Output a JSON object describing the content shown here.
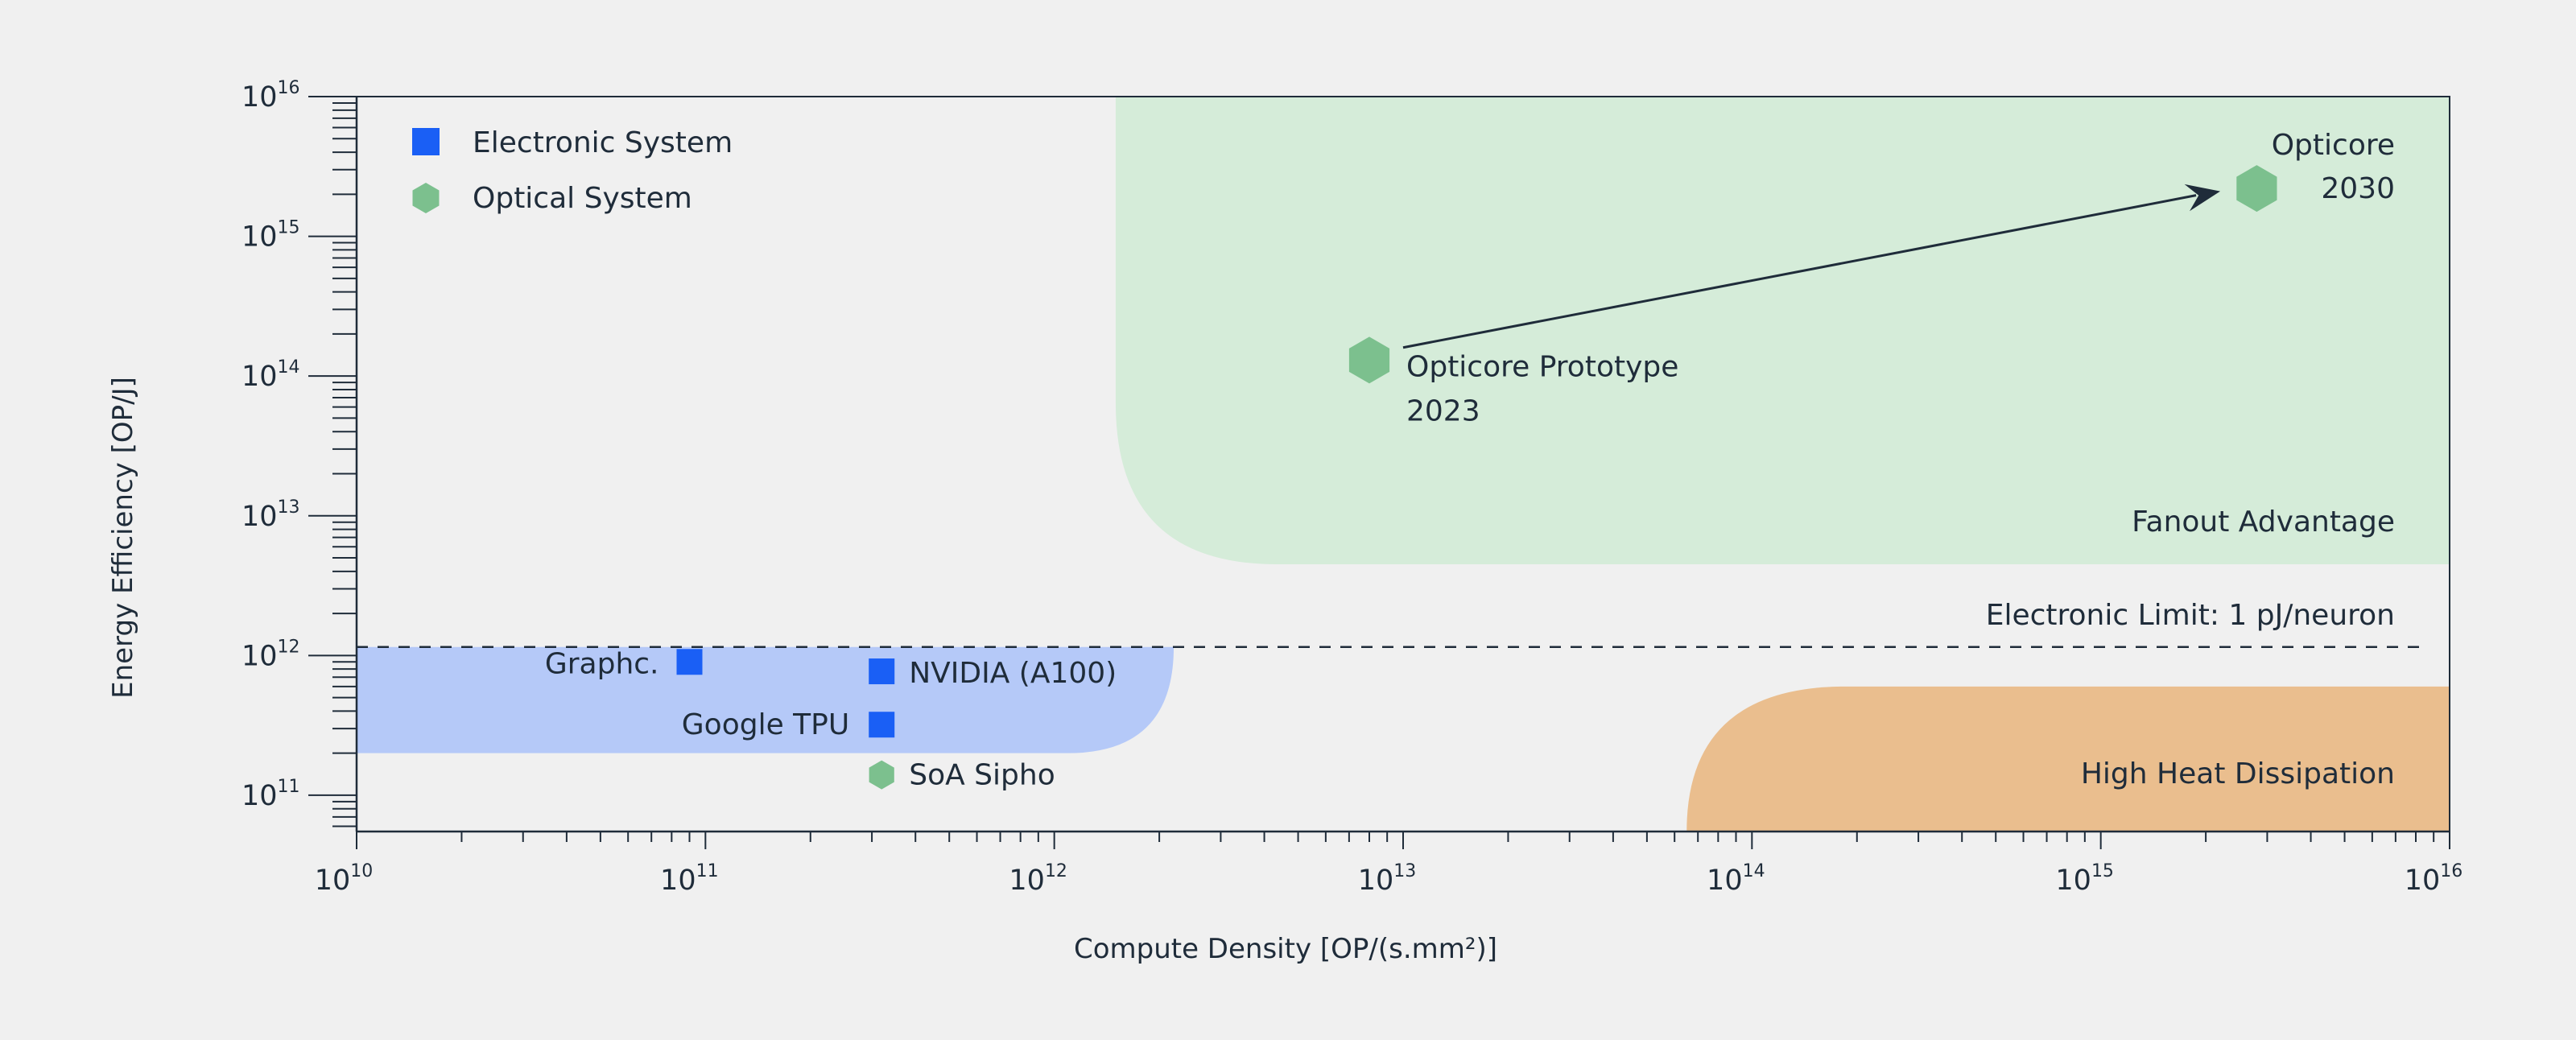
{
  "chart_data": {
    "type": "scatter",
    "x_scale": "log",
    "y_scale": "log",
    "xlim": [
      10000000000.0,
      1e+16
    ],
    "ylim": [
      55000000000.0,
      1e+16
    ],
    "xlabel": "Compute Density [OP/(s.mm²)]",
    "ylabel": "Energy Efficiency [OP/J]",
    "x_ticks": [
      {
        "base": "10",
        "exp": "10",
        "value": 10000000000.0
      },
      {
        "base": "10",
        "exp": "11",
        "value": 100000000000.0
      },
      {
        "base": "10",
        "exp": "12",
        "value": 1000000000000.0
      },
      {
        "base": "10",
        "exp": "13",
        "value": 10000000000000.0
      },
      {
        "base": "10",
        "exp": "14",
        "value": 100000000000000.0
      },
      {
        "base": "10",
        "exp": "15",
        "value": 1000000000000000.0
      },
      {
        "base": "10",
        "exp": "16",
        "value": 1e+16
      }
    ],
    "y_ticks": [
      {
        "base": "10",
        "exp": "11",
        "value": 100000000000.0
      },
      {
        "base": "10",
        "exp": "12",
        "value": 1000000000000.0
      },
      {
        "base": "10",
        "exp": "13",
        "value": 10000000000000.0
      },
      {
        "base": "10",
        "exp": "14",
        "value": 100000000000000.0
      },
      {
        "base": "10",
        "exp": "15",
        "value": 1000000000000000.0
      },
      {
        "base": "10",
        "exp": "16",
        "value": 1e+16
      }
    ],
    "legend_position": "top-left",
    "legend": [
      {
        "label": "Electronic System",
        "marker": "square",
        "color": "#1a5ff5"
      },
      {
        "label": "Optical System",
        "marker": "hexagon",
        "color": "#7cc08e"
      }
    ],
    "series": [
      {
        "type": "electronic",
        "marker": "square",
        "color": "#1a5ff5",
        "points": [
          {
            "label": "Graphc.",
            "x": 90000000000.0,
            "y": 900000000000.0
          },
          {
            "label": "NVIDIA (A100)",
            "x": 320000000000.0,
            "y": 770000000000.0
          },
          {
            "label": "Google TPU",
            "x": 320000000000.0,
            "y": 320000000000.0
          }
        ]
      },
      {
        "type": "optical",
        "marker": "hexagon",
        "color": "#7cc08e",
        "points": [
          {
            "label": "SoA Sipho",
            "x": 320000000000.0,
            "y": 140000000000.0
          },
          {
            "label": "Opticore Prototype",
            "label2": "2023",
            "x": 8000000000000.0,
            "y": 130000000000000.0
          },
          {
            "label": "Opticore",
            "label2": "2030",
            "x": 2800000000000000.0,
            "y": 2200000000000000.0
          }
        ]
      }
    ],
    "arrow": {
      "from": {
        "x": 10000000000000.0,
        "y": 160000000000000.0
      },
      "to": {
        "x": 2200000000000000.0,
        "y": 2100000000000000.0
      }
    },
    "reference_line": {
      "label": "Electronic Limit: 1 pJ/neuron",
      "y": 1150000000000.0,
      "style": "dashed"
    },
    "regions": [
      {
        "label": "Fanout Advantage",
        "color": "#d5ecd9",
        "x_start": 1500000000000.0,
        "x_end": 1e+16,
        "y_start": 4500000000000.0,
        "y_end": 1e+16
      },
      {
        "label": "",
        "color": "#b5c9f8",
        "x_start": 10000000000.0,
        "x_end": 2200000000000.0,
        "y_start": 200000000000.0,
        "y_end": 1150000000000.0
      },
      {
        "label": "High Heat Dissipation",
        "color": "#eabe8e",
        "x_start": 65000000000000.0,
        "x_end": 1e+16,
        "y_start": 55000000000.0,
        "y_end": 600000000000.0
      }
    ]
  },
  "colors": {
    "background": "#f0f0f0",
    "plot_background": "#f0f0f0",
    "axis": "#1f2c3a"
  }
}
